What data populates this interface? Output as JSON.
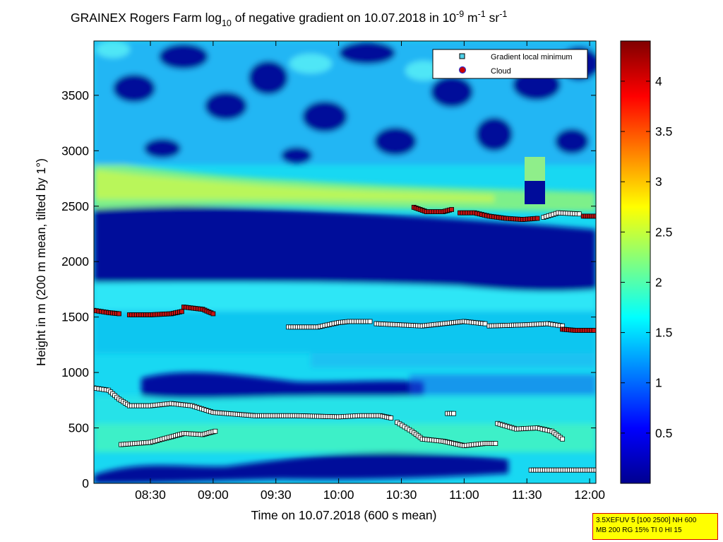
{
  "chart_data": {
    "type": "heatmap",
    "title": {
      "prefix": "GRAINEX Rogers Farm log",
      "sub10": "10",
      "mid": " of negative gradient on 10.07.2018 in 10",
      "sup9": "-9",
      "unit_m": " m",
      "sup1": "-1",
      "unit_sr": " sr",
      "sup1b": "-1"
    },
    "xlabel": "Time on 10.07.2018 (600 s mean)",
    "ylabel": "Height in m (200 m mean, tilted by 1°)",
    "x_range": [
      "08:03",
      "12:03"
    ],
    "ylim": [
      0,
      3990
    ],
    "x_ticks": [
      "08:30",
      "09:00",
      "09:30",
      "10:00",
      "10:30",
      "11:00",
      "11:30",
      "12:00"
    ],
    "y_ticks": [
      "0",
      "500",
      "1000",
      "1500",
      "2000",
      "2500",
      "3000",
      "3500"
    ],
    "colorbar": {
      "range": [
        0,
        4.4
      ],
      "ticks": [
        "0.5",
        "1",
        "1.5",
        "2",
        "2.5",
        "3",
        "3.5",
        "4"
      ]
    },
    "legend": {
      "position": "top-right",
      "entries": [
        {
          "label": "Gradient local minimum",
          "color": "#4fd0e8",
          "marker": "square"
        },
        {
          "label": "Cloud",
          "color": "#cc0000",
          "marker": "circle"
        }
      ]
    },
    "series": [
      {
        "kind": "cloud",
        "x": [
          "08:03",
          "08:10",
          "08:15"
        ],
        "y": [
          1560,
          1540,
          1530
        ]
      },
      {
        "kind": "cloud",
        "x": [
          "08:20",
          "08:30",
          "08:40",
          "08:45"
        ],
        "y": [
          1520,
          1520,
          1530,
          1550
        ]
      },
      {
        "kind": "cloud",
        "x": [
          "08:46",
          "08:55",
          "09:00"
        ],
        "y": [
          1590,
          1570,
          1530
        ]
      },
      {
        "kind": "min",
        "x": [
          "09:36",
          "09:50",
          "10:00",
          "10:05",
          "10:15"
        ],
        "y": [
          1410,
          1410,
          1450,
          1460,
          1460
        ]
      },
      {
        "kind": "min",
        "x": [
          "10:18",
          "10:40",
          "10:55",
          "11:00",
          "11:10"
        ],
        "y": [
          1440,
          1420,
          1450,
          1460,
          1440
        ]
      },
      {
        "kind": "min",
        "x": [
          "11:12",
          "11:30",
          "11:40",
          "11:47"
        ],
        "y": [
          1420,
          1430,
          1440,
          1420
        ]
      },
      {
        "kind": "cloud",
        "x": [
          "11:47",
          "11:53",
          "12:02"
        ],
        "y": [
          1390,
          1380,
          1380
        ]
      },
      {
        "kind": "cloud",
        "x": [
          "10:36",
          "10:42",
          "10:50",
          "10:54"
        ],
        "y": [
          2490,
          2450,
          2450,
          2470
        ]
      },
      {
        "kind": "cloud",
        "x": [
          "10:58",
          "11:05",
          "11:12",
          "11:20",
          "11:28",
          "11:35"
        ],
        "y": [
          2440,
          2440,
          2410,
          2390,
          2380,
          2390
        ]
      },
      {
        "kind": "min",
        "x": [
          "11:38",
          "11:45",
          "11:55"
        ],
        "y": [
          2400,
          2440,
          2430
        ]
      },
      {
        "kind": "cloud",
        "x": [
          "11:57",
          "12:03"
        ],
        "y": [
          2410,
          2410
        ]
      },
      {
        "kind": "min",
        "x": [
          "08:03",
          "08:10",
          "08:15",
          "08:20",
          "08:30",
          "08:40",
          "08:50",
          "09:00",
          "09:20",
          "09:40",
          "10:00",
          "10:10",
          "10:20",
          "10:25"
        ],
        "y": [
          860,
          840,
          760,
          700,
          700,
          720,
          700,
          640,
          610,
          610,
          600,
          610,
          610,
          590
        ]
      },
      {
        "kind": "min",
        "x": [
          "10:28",
          "10:35",
          "10:40",
          "10:50",
          "10:55",
          "11:00",
          "11:10",
          "11:15"
        ],
        "y": [
          550,
          470,
          400,
          380,
          360,
          340,
          360,
          360
        ]
      },
      {
        "kind": "min",
        "x": [
          "08:16",
          "08:30",
          "08:40",
          "08:46",
          "08:55",
          "09:01"
        ],
        "y": [
          350,
          370,
          420,
          450,
          440,
          470
        ]
      },
      {
        "kind": "min",
        "x": [
          "10:52",
          "10:55"
        ],
        "y": [
          630,
          630
        ]
      },
      {
        "kind": "min",
        "x": [
          "11:16",
          "11:25",
          "11:35",
          "11:42",
          "11:47"
        ],
        "y": [
          540,
          490,
          500,
          470,
          400
        ]
      },
      {
        "kind": "min",
        "x": [
          "11:32",
          "11:45",
          "12:03"
        ],
        "y": [
          120,
          120,
          120
        ]
      }
    ]
  },
  "info_box": {
    "line1": "3.5XEFUV 5 [100 2500] NH 600",
    "line2": "MB 200 RG 15% TI 0 HI 15"
  }
}
